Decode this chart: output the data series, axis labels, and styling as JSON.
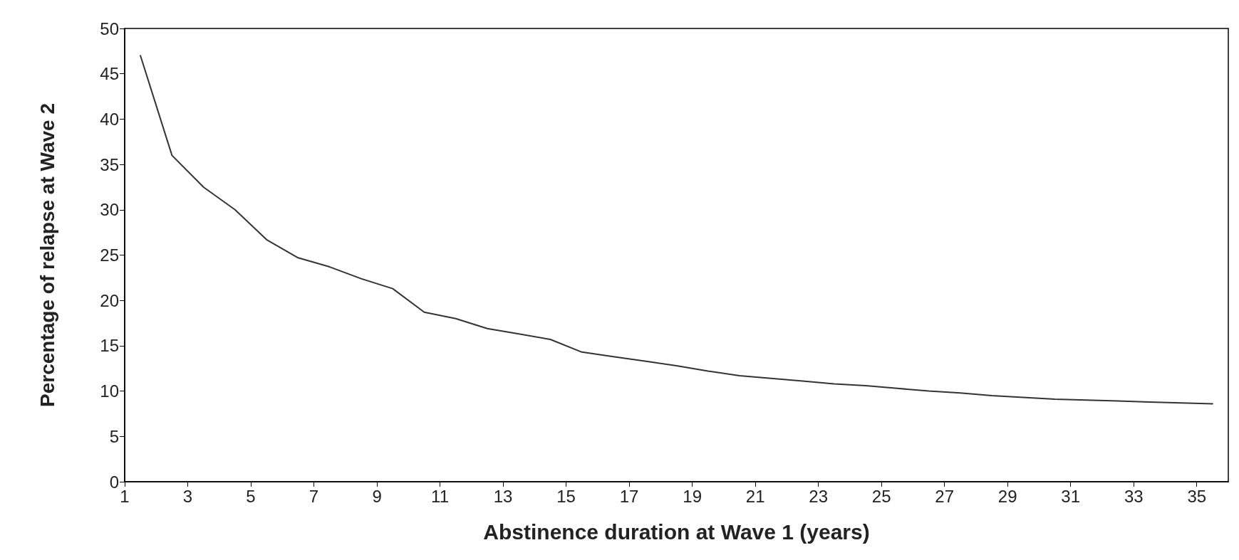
{
  "chart_data": {
    "type": "line",
    "xlabel": "Abstinence duration at Wave 1 (years)",
    "ylabel": "Percentage of relapse at Wave 2",
    "x": [
      1.5,
      2.5,
      3.5,
      4.5,
      5.5,
      6.5,
      7.5,
      8.5,
      9.5,
      10.5,
      11.5,
      12.5,
      13.5,
      14.5,
      15.5,
      16.5,
      17.5,
      18.5,
      19.5,
      20.5,
      21.5,
      22.5,
      23.5,
      24.5,
      25.5,
      26.5,
      27.5,
      28.5,
      29.5,
      30.5,
      31.5,
      32.5,
      33.5,
      34.5,
      35.5
    ],
    "series": [
      {
        "color": "#333333",
        "values": [
          47,
          36,
          32.5,
          30,
          26.7,
          24.7,
          23.7,
          22.4,
          21.3,
          18.7,
          18,
          16.9,
          16.3,
          15.7,
          14.3,
          13.8,
          13.3,
          12.8,
          12.2,
          11.7,
          11.4,
          11.1,
          10.8,
          10.6,
          10.3,
          10,
          9.8,
          9.5,
          9.3,
          9.1,
          9,
          8.9,
          8.8,
          8.7,
          8.6
        ]
      }
    ],
    "xlim": [
      1,
      36
    ],
    "xticks": [
      1,
      3,
      5,
      7,
      9,
      11,
      13,
      15,
      17,
      19,
      21,
      23,
      25,
      27,
      29,
      31,
      33,
      35
    ],
    "ylim": [
      0,
      50
    ],
    "yticks": [
      0,
      5,
      10,
      15,
      20,
      25,
      30,
      35,
      40,
      45,
      50
    ],
    "marker": "none",
    "line_style": "solid"
  }
}
